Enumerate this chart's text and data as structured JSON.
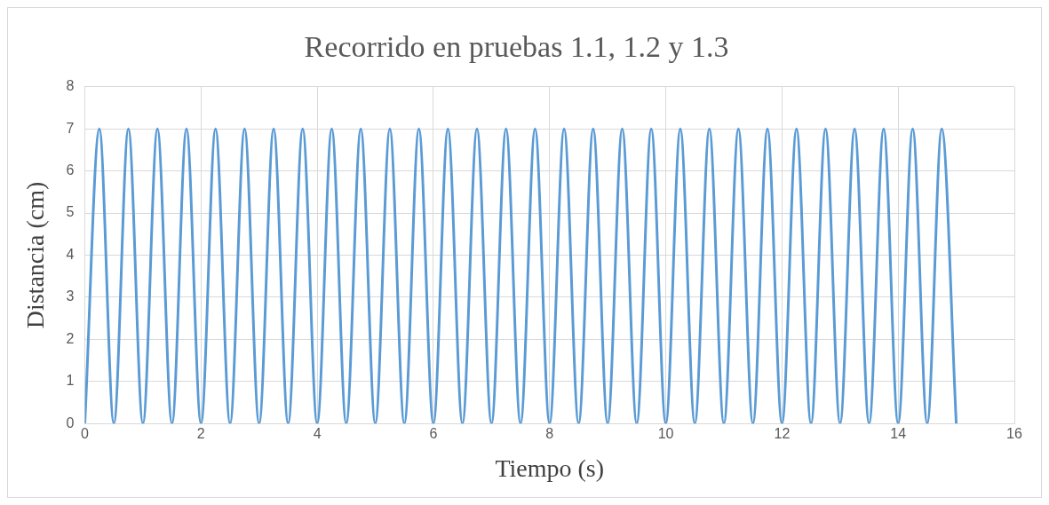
{
  "chart_data": {
    "type": "line",
    "title": "Recorrido en pruebas 1.1, 1.2 y 1.3",
    "xlabel": "Tiempo (s)",
    "ylabel": "Distancia (cm)",
    "x": [
      0,
      0.25,
      0.5,
      0.75,
      1,
      1.25,
      1.5,
      1.75,
      2,
      2.25,
      2.5,
      2.75,
      3,
      3.25,
      3.5,
      3.75,
      4,
      4.25,
      4.5,
      4.75,
      5,
      5.25,
      5.5,
      5.75,
      6,
      6.25,
      6.5,
      6.75,
      7,
      7.25,
      7.5,
      7.75,
      8,
      8.25,
      8.5,
      8.75,
      9,
      9.25,
      9.5,
      9.75,
      10,
      10.25,
      10.5,
      10.75,
      11,
      11.25,
      11.5,
      11.75,
      12,
      12.25,
      12.5,
      12.75,
      13,
      13.25,
      13.5,
      13.75,
      14,
      14.25,
      14.5,
      14.75,
      15
    ],
    "series": [
      {
        "color": "#5b9bd5",
        "values": [
          0,
          7,
          0,
          7,
          0,
          7,
          0,
          7,
          0,
          7,
          0,
          7,
          0,
          7,
          0,
          7,
          0,
          7,
          0,
          7,
          0,
          7,
          0,
          7,
          0,
          7,
          0,
          7,
          0,
          7,
          0,
          7,
          0,
          7,
          0,
          7,
          0,
          7,
          0,
          7,
          0,
          7,
          0,
          7,
          0,
          7,
          0,
          7,
          0,
          7,
          0,
          7,
          0,
          7,
          0,
          7,
          0,
          7,
          0,
          7,
          0
        ]
      }
    ],
    "xlim": [
      0,
      16
    ],
    "xticks": [
      0,
      2,
      4,
      6,
      8,
      10,
      12,
      14,
      16
    ],
    "ylim": [
      0,
      8
    ],
    "yticks": [
      0,
      1,
      2,
      3,
      4,
      5,
      6,
      7,
      8
    ],
    "grid": true,
    "legend": false,
    "marker": "none",
    "line_style": "solid"
  }
}
